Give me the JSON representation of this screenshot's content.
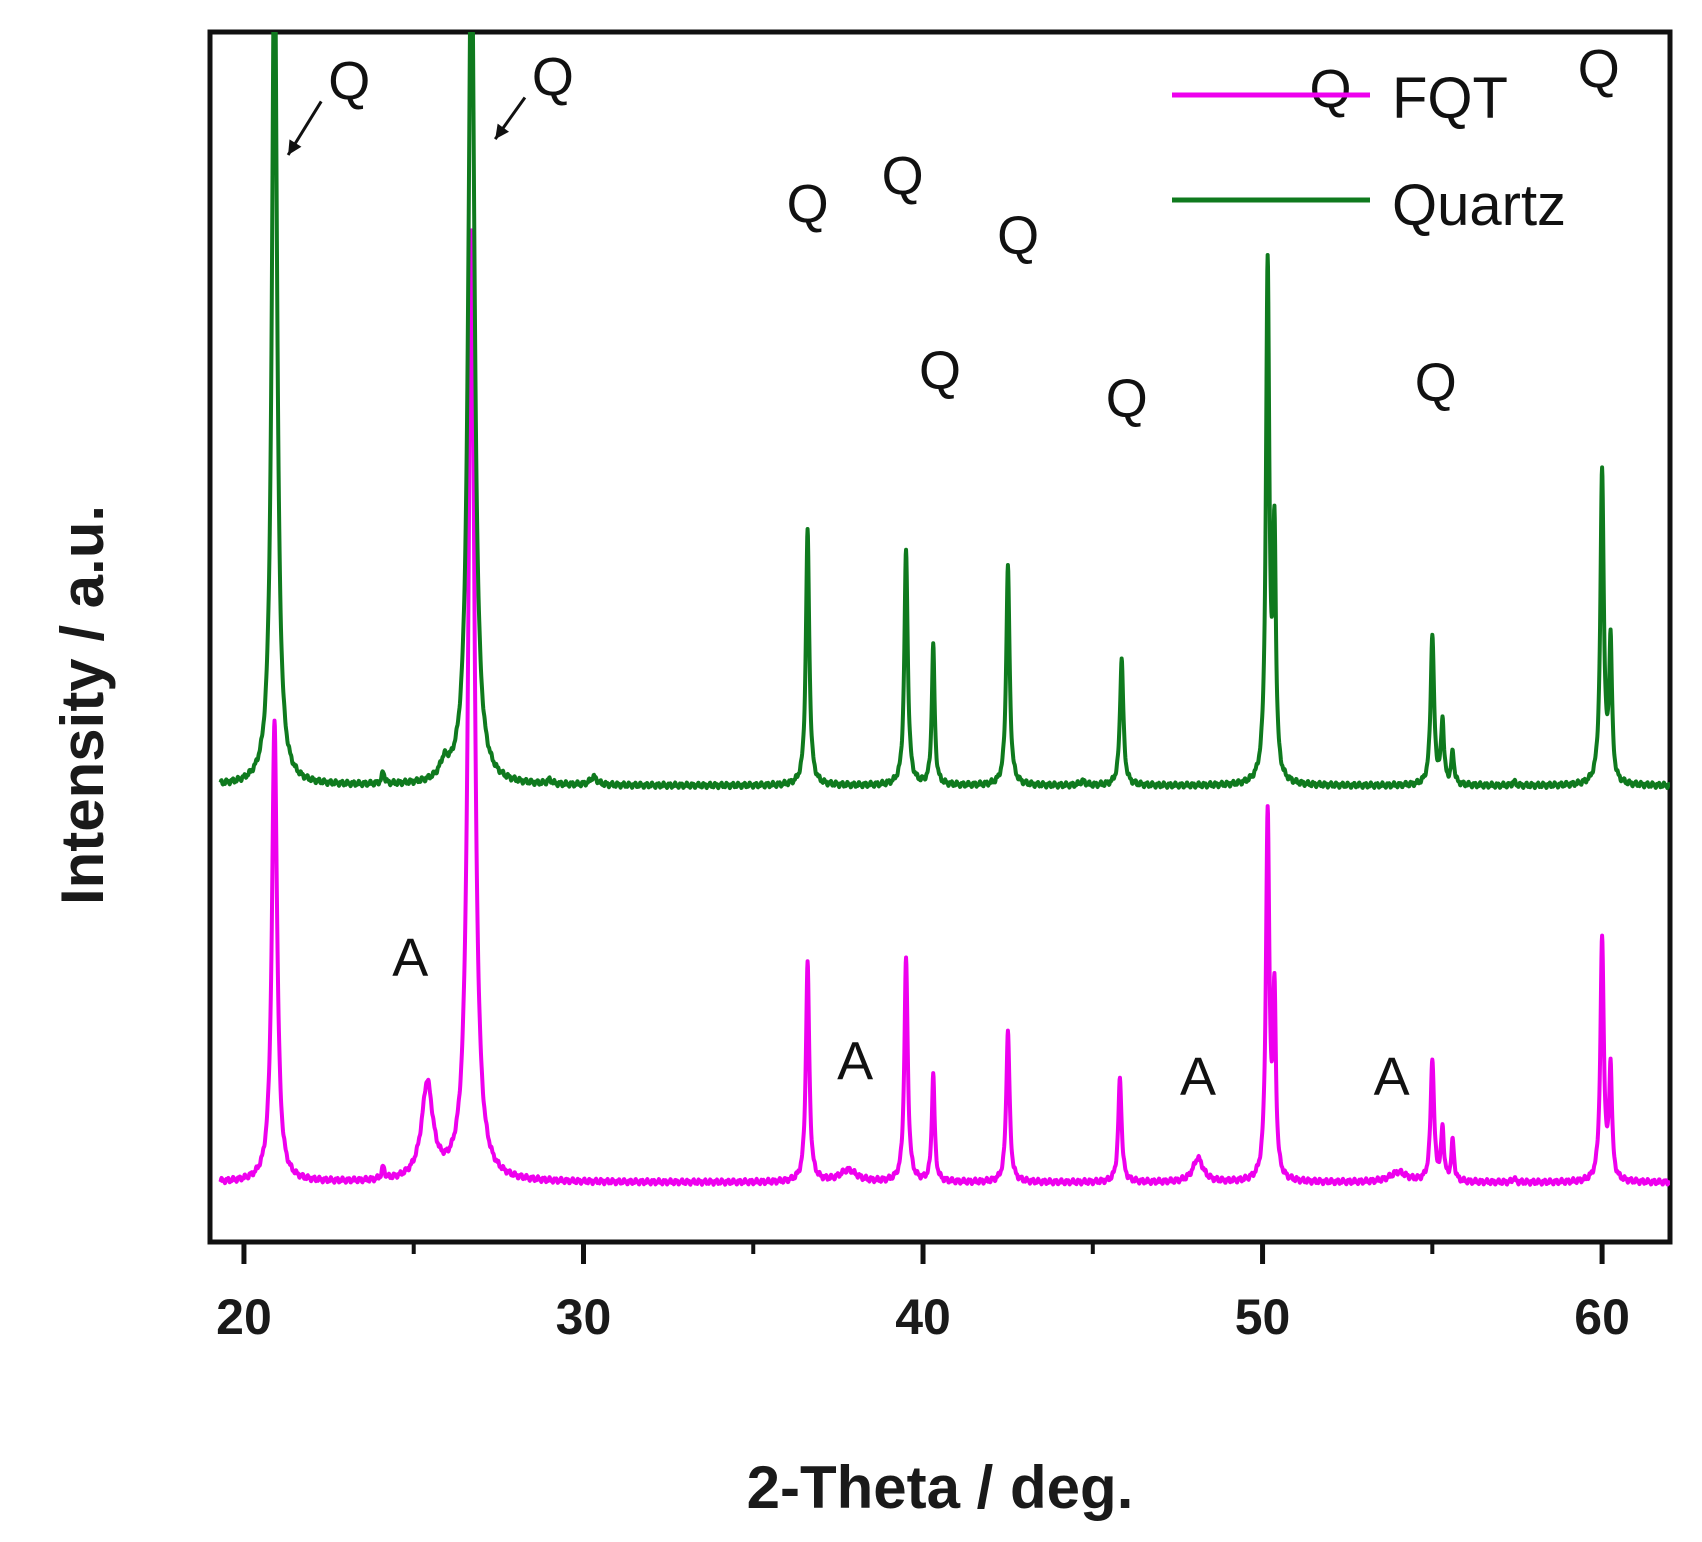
{
  "chart_data": {
    "type": "line",
    "title": "",
    "xlabel": "2-Theta / deg.",
    "ylabel": "Intensity / a.u.",
    "xlim": [
      19,
      62
    ],
    "ylim": [
      -0.15,
      2.9
    ],
    "xticks": [
      20,
      30,
      40,
      50,
      60
    ],
    "xticks_minor": [
      25,
      35,
      45,
      55
    ],
    "yticks": [],
    "grid": false,
    "legend_position": "top-right",
    "series": [
      {
        "name": "FQT",
        "color": "#ee00ee",
        "baseline": 0.0,
        "peaks": [
          {
            "x": 20.9,
            "h": 1.16,
            "w": 0.09
          },
          {
            "x": 24.1,
            "h": 0.03,
            "w": 0.05
          },
          {
            "x": 25.4,
            "h": 0.24,
            "w": 0.2
          },
          {
            "x": 26.7,
            "h": 2.4,
            "w": 0.11
          },
          {
            "x": 36.6,
            "h": 0.55,
            "w": 0.06
          },
          {
            "x": 37.8,
            "h": 0.03,
            "w": 0.3
          },
          {
            "x": 39.5,
            "h": 0.56,
            "w": 0.06
          },
          {
            "x": 40.3,
            "h": 0.27,
            "w": 0.05
          },
          {
            "x": 42.5,
            "h": 0.38,
            "w": 0.06
          },
          {
            "x": 45.8,
            "h": 0.26,
            "w": 0.06
          },
          {
            "x": 48.1,
            "h": 0.06,
            "w": 0.18
          },
          {
            "x": 50.15,
            "h": 0.92,
            "w": 0.06
          },
          {
            "x": 50.35,
            "h": 0.45,
            "w": 0.05
          },
          {
            "x": 54.0,
            "h": 0.025,
            "w": 0.3
          },
          {
            "x": 55.0,
            "h": 0.31,
            "w": 0.06
          },
          {
            "x": 55.3,
            "h": 0.13,
            "w": 0.05
          },
          {
            "x": 55.6,
            "h": 0.1,
            "w": 0.05
          },
          {
            "x": 57.4,
            "h": 0.01,
            "w": 0.05
          },
          {
            "x": 60.0,
            "h": 0.61,
            "w": 0.06
          },
          {
            "x": 60.25,
            "h": 0.28,
            "w": 0.05
          }
        ]
      },
      {
        "name": "Quartz",
        "color": "#0f7a1e",
        "baseline": 1.0,
        "peaks": [
          {
            "x": 20.9,
            "h": 2.2,
            "w": 0.09
          },
          {
            "x": 24.1,
            "h": 0.03,
            "w": 0.05
          },
          {
            "x": 25.9,
            "h": 0.04,
            "w": 0.15
          },
          {
            "x": 26.7,
            "h": 2.2,
            "w": 0.11
          },
          {
            "x": 29.0,
            "h": 0.01,
            "w": 0.08
          },
          {
            "x": 30.3,
            "h": 0.02,
            "w": 0.12
          },
          {
            "x": 36.6,
            "h": 0.64,
            "w": 0.06
          },
          {
            "x": 39.5,
            "h": 0.59,
            "w": 0.06
          },
          {
            "x": 40.3,
            "h": 0.35,
            "w": 0.05
          },
          {
            "x": 42.5,
            "h": 0.55,
            "w": 0.06
          },
          {
            "x": 44.7,
            "h": 0.01,
            "w": 0.1
          },
          {
            "x": 45.85,
            "h": 0.32,
            "w": 0.06
          },
          {
            "x": 50.15,
            "h": 1.3,
            "w": 0.06
          },
          {
            "x": 50.35,
            "h": 0.6,
            "w": 0.05
          },
          {
            "x": 55.0,
            "h": 0.38,
            "w": 0.06
          },
          {
            "x": 55.3,
            "h": 0.16,
            "w": 0.05
          },
          {
            "x": 55.6,
            "h": 0.08,
            "w": 0.05
          },
          {
            "x": 57.4,
            "h": 0.01,
            "w": 0.05
          },
          {
            "x": 60.0,
            "h": 0.79,
            "w": 0.06
          },
          {
            "x": 60.25,
            "h": 0.35,
            "w": 0.05
          }
        ]
      }
    ],
    "annotations": [
      {
        "text": "Q",
        "x": 23.1,
        "y": 2.73,
        "arrow_to": [
          21.3,
          2.59
        ]
      },
      {
        "text": "Q",
        "x": 29.1,
        "y": 2.74,
        "arrow_to": [
          27.4,
          2.63
        ]
      },
      {
        "text": "Q",
        "x": 36.6,
        "y": 2.42
      },
      {
        "text": "Q",
        "x": 39.4,
        "y": 2.49
      },
      {
        "text": "Q",
        "x": 40.5,
        "y": 2.0
      },
      {
        "text": "Q",
        "x": 42.8,
        "y": 2.34
      },
      {
        "text": "Q",
        "x": 46.0,
        "y": 1.93
      },
      {
        "text": "Q",
        "x": 52.0,
        "y": 2.71
      },
      {
        "text": "Q",
        "x": 55.1,
        "y": 1.97
      },
      {
        "text": "Q",
        "x": 59.9,
        "y": 2.76
      },
      {
        "text": "A",
        "x": 24.9,
        "y": 0.52
      },
      {
        "text": "A",
        "x": 38.0,
        "y": 0.26
      },
      {
        "text": "A",
        "x": 48.1,
        "y": 0.22
      },
      {
        "text": "A",
        "x": 53.8,
        "y": 0.22
      }
    ]
  }
}
